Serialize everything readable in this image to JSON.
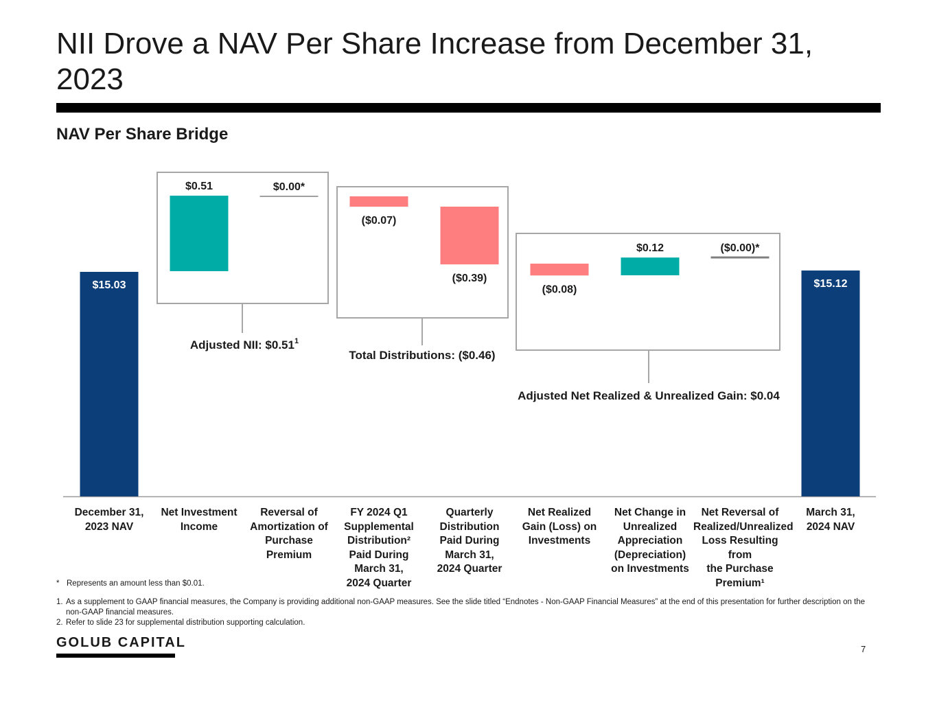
{
  "title": "NII Drove a NAV Per Share Increase from December 31, 2023",
  "subtitle": "NAV Per Share Bridge",
  "colors": {
    "nav_bar": "#0c3e7a",
    "positive": "#00aca6",
    "negative": "#fe7d7f",
    "zero": "#808080"
  },
  "chart_data": {
    "type": "waterfall",
    "title": "NAV Per Share Bridge",
    "categories": [
      "December 31, 2023 NAV",
      "Net Investment Income",
      "Reversal of Amortization of Purchase Premium",
      "FY 2024 Q1 Supplemental Distribution² Paid During March 31, 2024 Quarter",
      "Quarterly Distribution Paid During March 31, 2024 Quarter",
      "Net Realized Gain (Loss) on Investments",
      "Net Change in Unrealized Appreciation (Depreciation) on Investments",
      "Net Reversal of Realized/Unrealized Loss Resulting from the Purchase Premium¹",
      "March 31, 2024 NAV"
    ],
    "values": [
      15.03,
      0.51,
      0.0,
      -0.07,
      -0.39,
      -0.08,
      0.12,
      -0.0,
      15.12
    ],
    "kinds": [
      "total",
      "increase",
      "zero",
      "decrease",
      "decrease",
      "decrease",
      "increase",
      "zero",
      "total"
    ],
    "value_labels": [
      "$15.03",
      "$0.51",
      "$0.00*",
      "($0.07)",
      "($0.39)",
      "($0.08)",
      "$0.12",
      "($0.00)*",
      "$15.12"
    ],
    "groups": [
      {
        "label": "Adjusted NII: $0.51",
        "superscript": "1",
        "members": [
          1,
          2
        ]
      },
      {
        "label": "Total Distributions: ($0.46)",
        "superscript": "",
        "members": [
          3,
          4
        ]
      },
      {
        "label": "Adjusted Net Realized & Unrealized Gain: $0.04",
        "superscript": "",
        "members": [
          5,
          6,
          7
        ]
      }
    ]
  },
  "category_lines": [
    [
      "December 31,",
      "2023 NAV"
    ],
    [
      "Net Investment",
      "Income"
    ],
    [
      "Reversal of",
      "Amortization of",
      "Purchase",
      "Premium"
    ],
    [
      "FY 2024 Q1",
      "Supplemental",
      "Distribution²",
      "Paid During",
      "March 31,",
      "2024 Quarter"
    ],
    [
      "Quarterly",
      "Distribution",
      "Paid During",
      "March 31,",
      "2024 Quarter"
    ],
    [
      "Net Realized",
      "Gain (Loss) on",
      "Investments"
    ],
    [
      "Net Change in",
      "Unrealized",
      "Appreciation",
      "(Depreciation)",
      "on Investments"
    ],
    [
      "Net Reversal of",
      "Realized/Unrealized",
      "Loss Resulting from",
      "the Purchase",
      "Premium¹"
    ],
    [
      "March 31,",
      "2024 NAV"
    ]
  ],
  "footnotes": {
    "star_marker": "*",
    "star": "Represents an amount less than $0.01.",
    "note1_marker": "1.",
    "note1": "As a supplement to GAAP financial measures, the Company is providing additional non-GAAP measures. See the slide titled “Endnotes - Non-GAAP Financial Measures” at the end of this presentation for further description on the non-GAAP financial measures.",
    "note2_marker": "2.",
    "note2": "Refer to slide 23 for supplemental distribution supporting calculation."
  },
  "logo_text": "GOLUB CAPITAL",
  "page_number": "7"
}
